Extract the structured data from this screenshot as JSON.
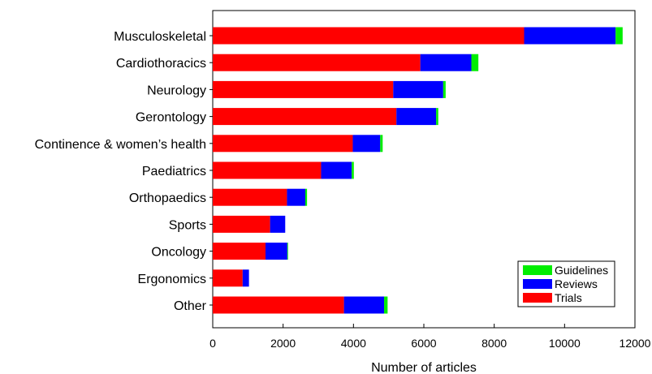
{
  "chart_data": {
    "type": "bar",
    "orientation": "horizontal",
    "stacked": true,
    "title": "",
    "xlabel": "Number of articles",
    "ylabel": "",
    "xlim": [
      0,
      12000
    ],
    "xticks": [
      0,
      2000,
      4000,
      6000,
      8000,
      10000,
      12000
    ],
    "xtick_labels": [
      "0",
      "2000",
      "4000",
      "6000",
      "8000",
      "10000",
      "12000"
    ],
    "grid": false,
    "legend_position": "bottom-right",
    "categories": [
      "Musculoskeletal",
      "Cardiothoracics",
      "Neurology",
      "Gerontology",
      "Continence & women’s health",
      "Paediatrics",
      "Orthopaedics",
      "Sports",
      "Oncology",
      "Ergonomics",
      "Other"
    ],
    "series": [
      {
        "name": "Trials",
        "color": "#ff0000",
        "values": [
          8850,
          5900,
          5130,
          5220,
          3980,
          3080,
          2110,
          1630,
          1500,
          850,
          3730
        ]
      },
      {
        "name": "Reviews",
        "color": "#0000ff",
        "values": [
          2600,
          1450,
          1420,
          1130,
          780,
          870,
          520,
          430,
          620,
          180,
          1140
        ]
      },
      {
        "name": "Guidelines",
        "color": "#00ee00",
        "values": [
          200,
          200,
          70,
          60,
          70,
          60,
          50,
          0,
          20,
          0,
          100
        ]
      }
    ],
    "legend_order": [
      "Guidelines",
      "Reviews",
      "Trials"
    ]
  }
}
